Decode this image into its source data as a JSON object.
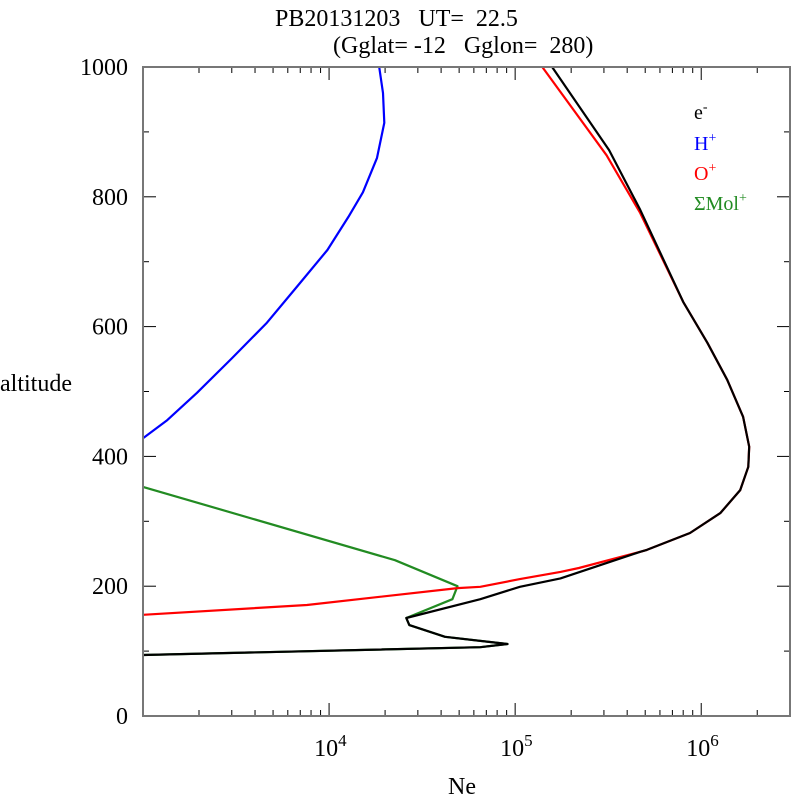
{
  "chart_data": {
    "type": "line",
    "title_line1": "PB20131203   UT=  22.5",
    "title_line2": "(Gglat= -12   Gglon=  280)",
    "xlabel": "Ne",
    "ylabel": "altitude",
    "xscale": "log",
    "xlim": [
      1000,
      3000000
    ],
    "ylim": [
      0,
      1000
    ],
    "x_ticks": [
      {
        "value": 10000,
        "base": "10",
        "exp": "4"
      },
      {
        "value": 100000,
        "base": "10",
        "exp": "5"
      },
      {
        "value": 1000000,
        "base": "10",
        "exp": "6"
      }
    ],
    "y_ticks": [
      "0",
      "200",
      "400",
      "600",
      "800",
      "1000"
    ],
    "y_tick_values": [
      0,
      200,
      400,
      600,
      800,
      1000
    ],
    "legend_position": "top-right",
    "series": [
      {
        "name": "e-",
        "label_base": "e",
        "label_sup": "-",
        "color": "#000000",
        "points": [
          [
            1000,
            94
          ],
          [
            65000,
            106
          ],
          [
            91000,
            111
          ],
          [
            42000,
            122
          ],
          [
            27000,
            140
          ],
          [
            26000,
            151
          ],
          [
            65000,
            180
          ],
          [
            106000,
            199
          ],
          [
            175000,
            212
          ],
          [
            470000,
            253
          ],
          [
            510000,
            256
          ],
          [
            870000,
            282
          ],
          [
            1270000,
            313
          ],
          [
            1620000,
            348
          ],
          [
            1790000,
            384
          ],
          [
            1810000,
            415
          ],
          [
            1680000,
            461
          ],
          [
            1380000,
            518
          ],
          [
            1080000,
            575
          ],
          [
            800000,
            638
          ],
          [
            470000,
            780
          ],
          [
            320000,
            872
          ],
          [
            158000,
            1000
          ]
        ]
      },
      {
        "name": "H+",
        "label_base": "H",
        "label_sup": "+",
        "color": "#0000ff",
        "points": [
          [
            1000,
            428
          ],
          [
            1350,
            456
          ],
          [
            1950,
            498
          ],
          [
            3000,
            551
          ],
          [
            4600,
            605
          ],
          [
            6700,
            661
          ],
          [
            9800,
            718
          ],
          [
            12700,
            769
          ],
          [
            15200,
            807
          ],
          [
            18100,
            860
          ],
          [
            19800,
            914
          ],
          [
            19500,
            960
          ],
          [
            18600,
            1000
          ]
        ]
      },
      {
        "name": "O+",
        "label_base": "O",
        "label_sup": "+",
        "color": "#ff0000",
        "points": [
          [
            1000,
            156
          ],
          [
            7600,
            171
          ],
          [
            49000,
            197
          ],
          [
            65000,
            199
          ],
          [
            106000,
            211
          ],
          [
            175000,
            222
          ],
          [
            220000,
            228
          ],
          [
            470000,
            253
          ],
          [
            510000,
            256
          ],
          [
            870000,
            282
          ],
          [
            1270000,
            313
          ],
          [
            1620000,
            348
          ],
          [
            1790000,
            384
          ],
          [
            1810000,
            415
          ],
          [
            1680000,
            461
          ],
          [
            1380000,
            518
          ],
          [
            1080000,
            575
          ],
          [
            800000,
            638
          ],
          [
            470000,
            775
          ],
          [
            310000,
            864
          ],
          [
            140000,
            1000
          ]
        ]
      },
      {
        "name": "ΣMol+",
        "label_base": "ΣMol",
        "label_sup": "+",
        "color": "#228b22",
        "points": [
          [
            1000,
            94
          ],
          [
            65000,
            106
          ],
          [
            91000,
            111
          ],
          [
            42000,
            122
          ],
          [
            27000,
            140
          ],
          [
            26000,
            151
          ],
          [
            46000,
            180
          ],
          [
            49000,
            200
          ],
          [
            22600,
            240
          ],
          [
            1000,
            353
          ]
        ]
      }
    ]
  }
}
